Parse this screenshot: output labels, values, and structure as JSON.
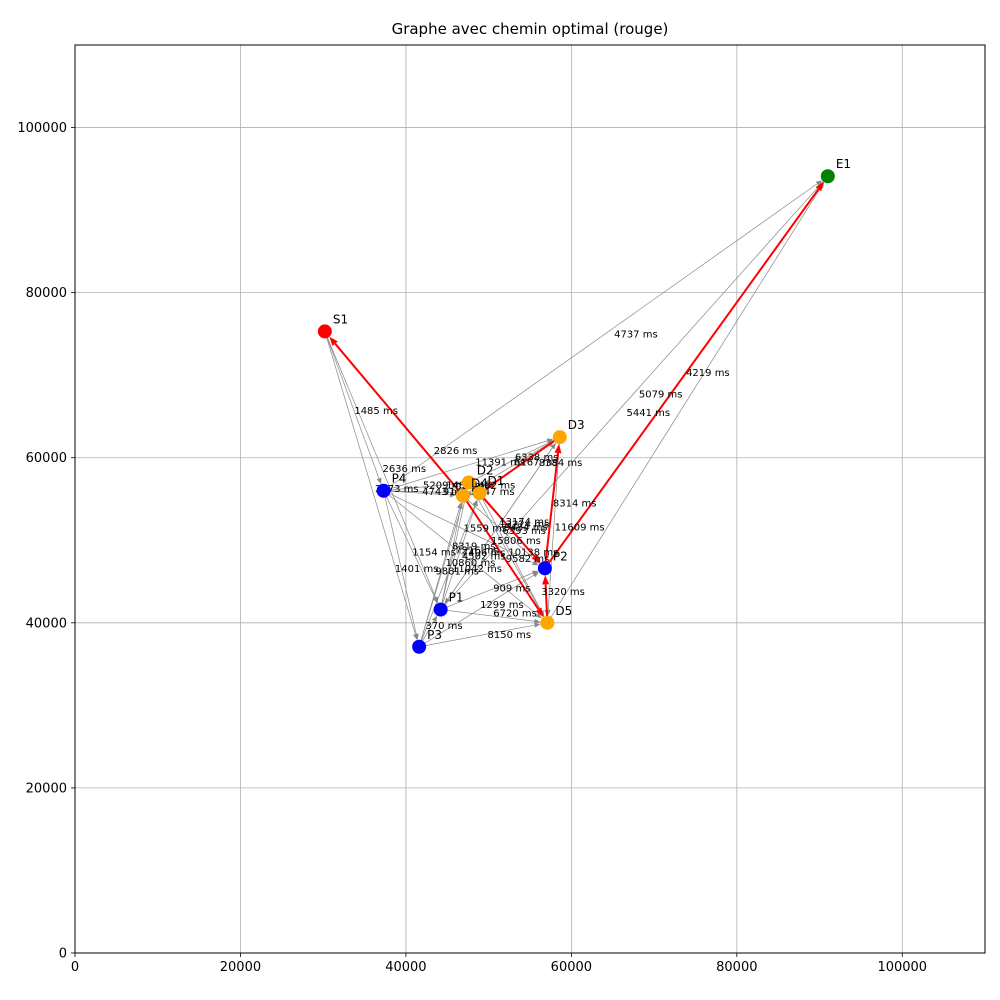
{
  "chart_data": {
    "type": "graph",
    "title": "Graphe avec chemin optimal (rouge)",
    "xlim": [
      0,
      110000
    ],
    "ylim": [
      0,
      110000
    ],
    "xticks": [
      0,
      20000,
      40000,
      60000,
      80000,
      100000
    ],
    "yticks": [
      0,
      20000,
      40000,
      60000,
      80000,
      100000
    ],
    "xtick_labels": [
      "0",
      "20000",
      "40000",
      "60000",
      "80000",
      "100000"
    ],
    "ytick_labels": [
      "0",
      "20000",
      "40000",
      "60000",
      "80000",
      "100000"
    ],
    "grid": true,
    "colors": {
      "start": "#ff0000",
      "end": "#008000",
      "pickup": "#0000ff",
      "delivery": "#ffa500",
      "edge": "#888888",
      "optimal": "#ff0000"
    },
    "nodes": [
      {
        "id": "S1",
        "label": "S1",
        "x": 30200,
        "y": 75300,
        "kind": "start"
      },
      {
        "id": "E1",
        "label": "E1",
        "x": 91000,
        "y": 94100,
        "kind": "end"
      },
      {
        "id": "P1",
        "label": "P1",
        "x": 44200,
        "y": 41600,
        "kind": "pickup"
      },
      {
        "id": "P2",
        "label": "P2",
        "x": 56800,
        "y": 46600,
        "kind": "pickup"
      },
      {
        "id": "P3",
        "label": "P3",
        "x": 41600,
        "y": 37100,
        "kind": "pickup"
      },
      {
        "id": "P4",
        "label": "P4",
        "x": 37300,
        "y": 56000,
        "kind": "pickup"
      },
      {
        "id": "D1",
        "label": "D1",
        "x": 48900,
        "y": 55700,
        "kind": "delivery"
      },
      {
        "id": "D2",
        "label": "D2",
        "x": 47600,
        "y": 57000,
        "kind": "delivery"
      },
      {
        "id": "D3",
        "label": "D3",
        "x": 58600,
        "y": 62500,
        "kind": "delivery"
      },
      {
        "id": "D4",
        "label": "D4",
        "x": 46900,
        "y": 55400,
        "kind": "delivery"
      },
      {
        "id": "D5",
        "label": "D5",
        "x": 57100,
        "y": 40000,
        "kind": "delivery"
      }
    ],
    "edges": [
      {
        "from": "S1",
        "to": "P4"
      },
      {
        "from": "S1",
        "to": "P3"
      },
      {
        "from": "S1",
        "to": "P1"
      },
      {
        "from": "P4",
        "to": "E1"
      },
      {
        "from": "P2",
        "to": "E1"
      },
      {
        "from": "D5",
        "to": "E1"
      },
      {
        "from": "P1",
        "to": "E1"
      },
      {
        "from": "P4",
        "to": "D3"
      },
      {
        "from": "P4",
        "to": "D2"
      },
      {
        "from": "P4",
        "to": "D1"
      },
      {
        "from": "P4",
        "to": "D4"
      },
      {
        "from": "P4",
        "to": "P1"
      },
      {
        "from": "P4",
        "to": "P3"
      },
      {
        "from": "P4",
        "to": "P2"
      },
      {
        "from": "P4",
        "to": "D5"
      },
      {
        "from": "P3",
        "to": "D4"
      },
      {
        "from": "P3",
        "to": "D2"
      },
      {
        "from": "P3",
        "to": "D1"
      },
      {
        "from": "P3",
        "to": "D5"
      },
      {
        "from": "P3",
        "to": "P2"
      },
      {
        "from": "P3",
        "to": "P1"
      },
      {
        "from": "P1",
        "to": "D4"
      },
      {
        "from": "P1",
        "to": "D2"
      },
      {
        "from": "P1",
        "to": "D1"
      },
      {
        "from": "P1",
        "to": "D5"
      },
      {
        "from": "P1",
        "to": "P2"
      },
      {
        "from": "P1",
        "to": "D3"
      },
      {
        "from": "D4",
        "to": "D1"
      },
      {
        "from": "D4",
        "to": "D3"
      },
      {
        "from": "D4",
        "to": "P2"
      },
      {
        "from": "D4",
        "to": "D5"
      },
      {
        "from": "D2",
        "to": "D3"
      },
      {
        "from": "D2",
        "to": "P2"
      },
      {
        "from": "D2",
        "to": "D5"
      },
      {
        "from": "D1",
        "to": "D3"
      },
      {
        "from": "D1",
        "to": "P2"
      },
      {
        "from": "D1",
        "to": "D5"
      },
      {
        "from": "D3",
        "to": "P2"
      },
      {
        "from": "D3",
        "to": "D5"
      },
      {
        "from": "D3",
        "to": "P1"
      },
      {
        "from": "P2",
        "to": "D5"
      },
      {
        "from": "D2",
        "to": "D1"
      }
    ],
    "optimal_path": [
      {
        "from": "D4",
        "to": "S1"
      },
      {
        "from": "D4",
        "to": "D5"
      },
      {
        "from": "D5",
        "to": "P2"
      },
      {
        "from": "P2",
        "to": "D3"
      },
      {
        "from": "D3",
        "to": "D1"
      },
      {
        "from": "D1",
        "to": "P2"
      },
      {
        "from": "P2",
        "to": "E1"
      }
    ],
    "edge_labels": [
      {
        "text": "4737 ms",
        "x": 67800,
        "y": 75000
      },
      {
        "text": "4219 ms",
        "x": 76500,
        "y": 70300
      },
      {
        "text": "5079 ms",
        "x": 70800,
        "y": 67700
      },
      {
        "text": "5441 ms",
        "x": 69300,
        "y": 65500
      },
      {
        "text": "1485 ms",
        "x": 36400,
        "y": 65700
      },
      {
        "text": "2826 ms",
        "x": 46000,
        "y": 60900
      },
      {
        "text": "6338 ms",
        "x": 55800,
        "y": 60100
      },
      {
        "text": "11391 ms",
        "x": 51400,
        "y": 59500
      },
      {
        "text": "6167 ms",
        "x": 55700,
        "y": 59500
      },
      {
        "text": "8384 ms",
        "x": 58700,
        "y": 59400
      },
      {
        "text": "2636 ms",
        "x": 39800,
        "y": 58700
      },
      {
        "text": "5209 ms",
        "x": 44700,
        "y": 56700
      },
      {
        "text": "1480 ms",
        "x": 47500,
        "y": 56700
      },
      {
        "text": "4462 ms",
        "x": 50600,
        "y": 56700
      },
      {
        "text": "2073 ms",
        "x": 38900,
        "y": 56300
      },
      {
        "text": "4743 ms",
        "x": 44600,
        "y": 55900
      },
      {
        "text": "9141 ms",
        "x": 47100,
        "y": 55900
      },
      {
        "text": "5247 ms",
        "x": 50500,
        "y": 55900
      },
      {
        "text": "8314 ms",
        "x": 60400,
        "y": 54500
      },
      {
        "text": "13174 ms",
        "x": 54300,
        "y": 52300
      },
      {
        "text": "13224 ms",
        "x": 54300,
        "y": 52000
      },
      {
        "text": "9484 ms",
        "x": 54500,
        "y": 51600
      },
      {
        "text": "11609 ms",
        "x": 61000,
        "y": 51600
      },
      {
        "text": "1559 ms",
        "x": 49600,
        "y": 51500
      },
      {
        "text": "6393 ms",
        "x": 54300,
        "y": 51200
      },
      {
        "text": "15806 ms",
        "x": 53300,
        "y": 50000
      },
      {
        "text": "8319 ms",
        "x": 48200,
        "y": 49300
      },
      {
        "text": "7216 ms",
        "x": 48600,
        "y": 48800
      },
      {
        "text": "7406 ms",
        "x": 49400,
        "y": 48500
      },
      {
        "text": "1154 ms",
        "x": 43400,
        "y": 48600
      },
      {
        "text": "10138 ms",
        "x": 55400,
        "y": 48600
      },
      {
        "text": "4502 ms",
        "x": 49400,
        "y": 48100
      },
      {
        "text": "9582 ms",
        "x": 54700,
        "y": 47800
      },
      {
        "text": "10860 ms",
        "x": 47800,
        "y": 47300
      },
      {
        "text": "1401 ms",
        "x": 41300,
        "y": 46600
      },
      {
        "text": "11042 ms",
        "x": 48600,
        "y": 46600
      },
      {
        "text": "9881 ms",
        "x": 46200,
        "y": 46300
      },
      {
        "text": "909 ms",
        "x": 52800,
        "y": 44200
      },
      {
        "text": "3320 ms",
        "x": 59000,
        "y": 43800
      },
      {
        "text": "1299 ms",
        "x": 51600,
        "y": 42200
      },
      {
        "text": "6720 ms",
        "x": 53200,
        "y": 41200
      },
      {
        "text": "370 ms",
        "x": 44600,
        "y": 39700
      },
      {
        "text": "8150 ms",
        "x": 52500,
        "y": 38600
      }
    ]
  }
}
